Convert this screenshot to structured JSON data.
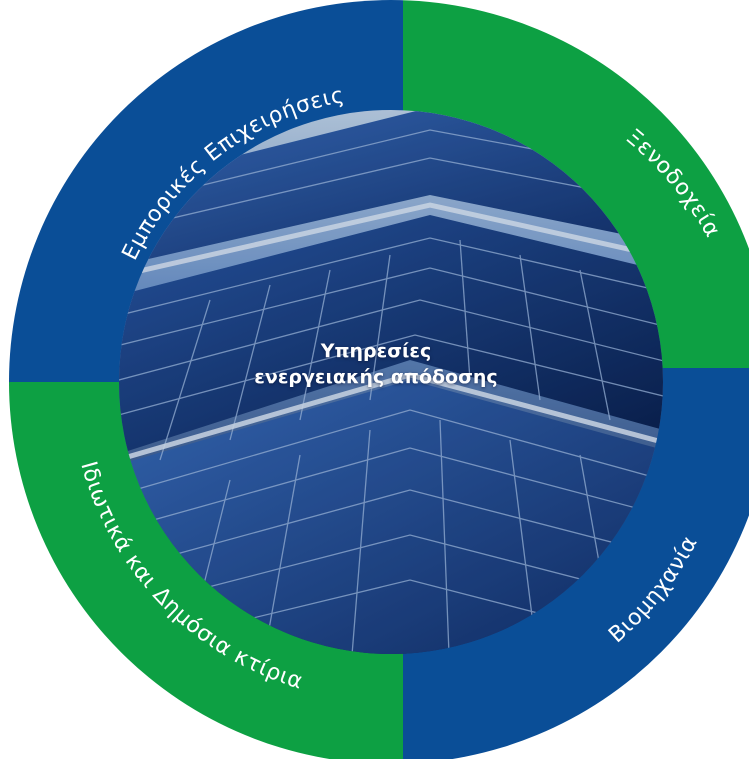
{
  "colors": {
    "blue": "#0a4e97",
    "green": "#0da043",
    "label": "#ffffff",
    "panel_dark": "#0f2f6e",
    "panel_mid": "#2558a6",
    "panel_light": "#8fb2df"
  },
  "center": {
    "line1": "Υπηρεσίες",
    "line2": "ενεργειακής απόδοσης"
  },
  "segments": [
    {
      "id": "commercial",
      "label": "Εμπορικές Επιχειρήσεις",
      "color": "blue"
    },
    {
      "id": "hotels",
      "label": "Ξενοδοχεία",
      "color": "green"
    },
    {
      "id": "industry",
      "label": "Βιομηχανία",
      "color": "blue"
    },
    {
      "id": "public",
      "label": "Ιδιωτικά και Δημόσια κτίρια",
      "color": "green"
    }
  ],
  "center_image": {
    "icon": "solar-panels-photo"
  }
}
